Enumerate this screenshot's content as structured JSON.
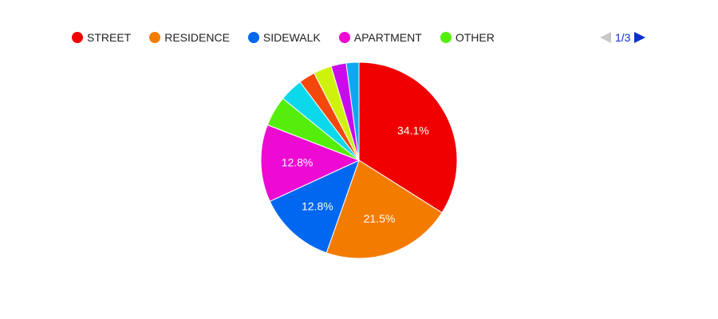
{
  "chart_data": {
    "type": "pie",
    "legend_position": "top",
    "slices": [
      {
        "label": "STREET",
        "value": 34.1,
        "color": "#f00000",
        "data_label": "34.1%"
      },
      {
        "label": "RESIDENCE",
        "value": 21.5,
        "color": "#f37c00",
        "data_label": "21.5%"
      },
      {
        "label": "SIDEWALK",
        "value": 12.8,
        "color": "#0068f0",
        "data_label": "12.8%"
      },
      {
        "label": "APARTMENT",
        "value": 12.8,
        "color": "#ed0ad2",
        "data_label": "12.8%"
      },
      {
        "label": "",
        "value": 5.0,
        "color": "#55ee0b",
        "data_label": ""
      },
      {
        "label": "",
        "value": 3.9,
        "color": "#0cd8ec",
        "data_label": ""
      },
      {
        "label": "",
        "value": 2.7,
        "color": "#f3470c",
        "data_label": ""
      },
      {
        "label": "",
        "value": 3.0,
        "color": "#cff20c",
        "data_label": ""
      },
      {
        "label": "",
        "value": 2.5,
        "color": "#c80aec",
        "data_label": ""
      },
      {
        "label": "",
        "value": 2.1,
        "color": "#0aaaf0",
        "data_label": ""
      }
    ]
  },
  "legend": {
    "items": [
      {
        "label": "STREET",
        "color": "#f00000"
      },
      {
        "label": "RESIDENCE",
        "color": "#f37c00"
      },
      {
        "label": "SIDEWALK",
        "color": "#0068f0"
      },
      {
        "label": "APARTMENT",
        "color": "#ed0ad2"
      },
      {
        "label": "OTHER",
        "color": "#55ee0b"
      }
    ]
  },
  "pager": {
    "text": "1/3"
  }
}
